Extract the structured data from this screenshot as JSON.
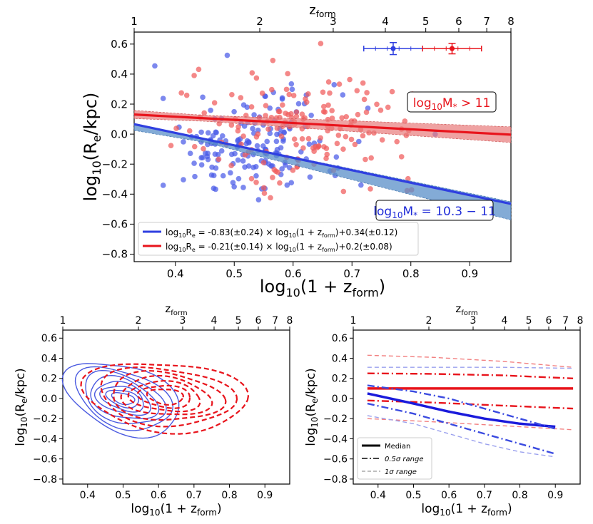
{
  "chart_data": [
    {
      "id": "top",
      "type": "scatter",
      "xlabel": "log",
      "xlabel_tail": "(1 + z",
      "xlabel_sub": "10",
      "xlabel_sub2": "form",
      "ylabel": "log",
      "ylabel_sub": "10",
      "ylabel_tail": "(R",
      "ylabel_sub2": "e",
      "ylabel_end": "/kpc)",
      "toplabel": "z",
      "toplabel_sub": "form",
      "xlim": [
        0.33,
        0.97
      ],
      "ylim": [
        -0.85,
        0.68
      ],
      "xticks": [
        0.4,
        0.5,
        0.6,
        0.7,
        0.8,
        0.9
      ],
      "xtick_labels": [
        "0.4",
        "0.5",
        "0.6",
        "0.7",
        "0.8",
        "0.9"
      ],
      "yticks": [
        -0.8,
        -0.6,
        -0.4,
        -0.2,
        0.0,
        0.2,
        0.4,
        0.6
      ],
      "ytick_labels": [
        "−0.8",
        "−0.6",
        "−0.4",
        "−0.2",
        "0.0",
        "0.2",
        "0.4",
        "0.6"
      ],
      "top_ticks": [
        1,
        2,
        3,
        4,
        5,
        6,
        7,
        8
      ],
      "top_tick_labels": [
        "1",
        "2",
        "3",
        "4",
        "5",
        "6",
        "7",
        "8"
      ],
      "series": [
        {
          "name": "low-mass",
          "color": "#2f3fe0",
          "fit_slope": -0.83,
          "fit_intercept": 0.34,
          "band_lo_delta": -0.08,
          "band_hi_delta": 0.0
        },
        {
          "name": "high-mass",
          "color": "#e8141c",
          "fit_slope": -0.21,
          "fit_intercept": 0.2,
          "band_lo_delta": -0.04,
          "band_hi_delta": 0.04
        }
      ],
      "annotations": [
        {
          "name": "high-mass-label",
          "text": "log",
          "sub": "10",
          "tail": "M",
          "sub2": "*",
          "end": " > 11",
          "color": "#e8141c"
        },
        {
          "name": "low-mass-label",
          "text": "log",
          "sub": "10",
          "tail": "M",
          "sub2": "*",
          "end": " = 10.3 − 11",
          "color": "#1f2bd8"
        }
      ],
      "errorbars": [
        {
          "name": "blue-errorbar",
          "x": 0.77,
          "y": 0.57,
          "xerr": 0.05,
          "yerr": 0.04,
          "color": "#2f3fe0"
        },
        {
          "name": "red-errorbar",
          "x": 0.87,
          "y": 0.57,
          "xerr": 0.05,
          "yerr": 0.035,
          "color": "#e8141c"
        }
      ],
      "legend": {
        "position": "lower-left",
        "entries": [
          {
            "text": "log",
            "sub": "10",
            "text2": "R",
            "sub2": "e",
            "text3": " = -0.83(±0.24) × log",
            "sub3": "10",
            "text4": "(1 + z",
            "sub4": "form",
            "text5": ")+0.34(±0.12)",
            "color": "#2f3fe0"
          },
          {
            "text": "log",
            "sub": "10",
            "text2": "R",
            "sub2": "e",
            "text3": " = -0.21(±0.14) × log",
            "sub3": "10",
            "text4": "(1 + z",
            "sub4": "form",
            "text5": ")+0.2(±0.08)",
            "color": "#e8141c"
          }
        ]
      }
    },
    {
      "id": "bottom-left",
      "type": "contour",
      "xlim": [
        0.33,
        0.97
      ],
      "ylim": [
        -0.85,
        0.68
      ],
      "xticks": [
        0.4,
        0.5,
        0.6,
        0.7,
        0.8,
        0.9
      ],
      "xtick_labels": [
        "0.4",
        "0.5",
        "0.6",
        "0.7",
        "0.8",
        "0.9"
      ],
      "yticks": [
        -0.8,
        -0.6,
        -0.4,
        -0.2,
        0.0,
        0.2,
        0.4,
        0.6
      ],
      "ytick_labels": [
        "−0.8",
        "−0.6",
        "−0.4",
        "−0.2",
        "0.0",
        "0.2",
        "0.4",
        "0.6"
      ],
      "top_ticks": [
        1,
        2,
        3,
        4,
        5,
        6,
        7,
        8
      ],
      "top_tick_labels": [
        "1",
        "2",
        "3",
        "4",
        "5",
        "6",
        "7",
        "8"
      ],
      "contours": [
        {
          "name": "low-mass-contours",
          "style": "solid",
          "color": "#4a5ae0",
          "center": [
            0.5,
            0.0
          ],
          "levels": [
            [
              0.15,
              0.38
            ],
            [
              0.125,
              0.32
            ],
            [
              0.105,
              0.27
            ],
            [
              0.088,
              0.22
            ],
            [
              0.072,
              0.17
            ],
            [
              0.057,
              0.13
            ],
            [
              0.043,
              0.09
            ],
            [
              0.03,
              0.06
            ]
          ]
        },
        {
          "name": "high-mass-contours",
          "style": "dashed",
          "color": "#e8141c",
          "center": [
            0.62,
            0.02
          ],
          "levels": [
            [
              0.22,
              0.36
            ],
            [
              0.18,
              0.3
            ],
            [
              0.15,
              0.25
            ],
            [
              0.12,
              0.2
            ],
            [
              0.095,
              0.155
            ],
            [
              0.07,
              0.115
            ],
            [
              0.048,
              0.08
            ]
          ]
        }
      ]
    },
    {
      "id": "bottom-right",
      "type": "line",
      "xlim": [
        0.33,
        0.97
      ],
      "ylim": [
        -0.85,
        0.68
      ],
      "xticks": [
        0.4,
        0.5,
        0.6,
        0.7,
        0.8,
        0.9
      ],
      "xtick_labels": [
        "0.4",
        "0.5",
        "0.6",
        "0.7",
        "0.8",
        "0.9"
      ],
      "yticks": [
        -0.8,
        -0.6,
        -0.4,
        -0.2,
        0.0,
        0.2,
        0.4,
        0.6
      ],
      "ytick_labels": [
        "−0.8",
        "−0.6",
        "−0.4",
        "−0.2",
        "0.0",
        "0.2",
        "0.4",
        "0.6"
      ],
      "top_ticks": [
        1,
        2,
        3,
        4,
        5,
        6,
        7,
        8
      ],
      "top_tick_labels": [
        "1",
        "2",
        "3",
        "4",
        "5",
        "6",
        "7",
        "8"
      ],
      "lines": [
        {
          "name": "red-median",
          "style": "median",
          "color": "#e8141c",
          "x": [
            0.37,
            0.95
          ],
          "y": [
            0.1,
            0.1
          ]
        },
        {
          "name": "red-half-sigma-upper",
          "style": "dashdot",
          "color": "#e8141c",
          "x": [
            0.37,
            0.55,
            0.75,
            0.95
          ],
          "y": [
            0.25,
            0.245,
            0.23,
            0.2
          ]
        },
        {
          "name": "red-half-sigma-lower",
          "style": "dashdot",
          "color": "#e8141c",
          "x": [
            0.37,
            0.55,
            0.75,
            0.95
          ],
          "y": [
            -0.02,
            -0.04,
            -0.07,
            -0.1
          ]
        },
        {
          "name": "red-one-sigma-upper",
          "style": "dashed",
          "color": "#f28080",
          "x": [
            0.37,
            0.55,
            0.75,
            0.95
          ],
          "y": [
            0.43,
            0.41,
            0.37,
            0.31
          ]
        },
        {
          "name": "red-one-sigma-lower",
          "style": "dashed",
          "color": "#f28080",
          "x": [
            0.37,
            0.55,
            0.75,
            0.95
          ],
          "y": [
            -0.2,
            -0.23,
            -0.27,
            -0.31
          ]
        },
        {
          "name": "blue-median",
          "style": "median",
          "color": "#1a1adb",
          "x": [
            0.37,
            0.5,
            0.6,
            0.7,
            0.8,
            0.9
          ],
          "y": [
            0.05,
            -0.05,
            -0.13,
            -0.2,
            -0.25,
            -0.28
          ]
        },
        {
          "name": "blue-half-sigma-upper",
          "style": "dashdot",
          "color": "#3a4ae0",
          "x": [
            0.37,
            0.5,
            0.6,
            0.7,
            0.8,
            0.9
          ],
          "y": [
            0.13,
            0.07,
            0.0,
            -0.1,
            -0.2,
            -0.3
          ]
        },
        {
          "name": "blue-half-sigma-lower",
          "style": "dashdot",
          "color": "#3a4ae0",
          "x": [
            0.37,
            0.5,
            0.6,
            0.7,
            0.8,
            0.9
          ],
          "y": [
            -0.05,
            -0.15,
            -0.25,
            -0.35,
            -0.45,
            -0.55
          ]
        },
        {
          "name": "blue-one-sigma-upper",
          "style": "dashed",
          "color": "#9aa0ee",
          "x": [
            0.37,
            0.55,
            0.75,
            0.95
          ],
          "y": [
            0.31,
            0.31,
            0.31,
            0.3
          ]
        },
        {
          "name": "blue-one-sigma-lower",
          "style": "dashed",
          "color": "#9aa0ee",
          "x": [
            0.37,
            0.5,
            0.6,
            0.7,
            0.8,
            0.9
          ],
          "y": [
            -0.17,
            -0.25,
            -0.35,
            -0.45,
            -0.53,
            -0.58
          ]
        }
      ],
      "legend": {
        "position": "lower-left",
        "entries": [
          {
            "name": "legend-median",
            "label": "Median",
            "style": "median"
          },
          {
            "name": "legend-half-sigma",
            "label": "0.5σ range",
            "style": "dashdot"
          },
          {
            "name": "legend-one-sigma",
            "label": "1σ range",
            "style": "dashed"
          }
        ]
      }
    }
  ]
}
